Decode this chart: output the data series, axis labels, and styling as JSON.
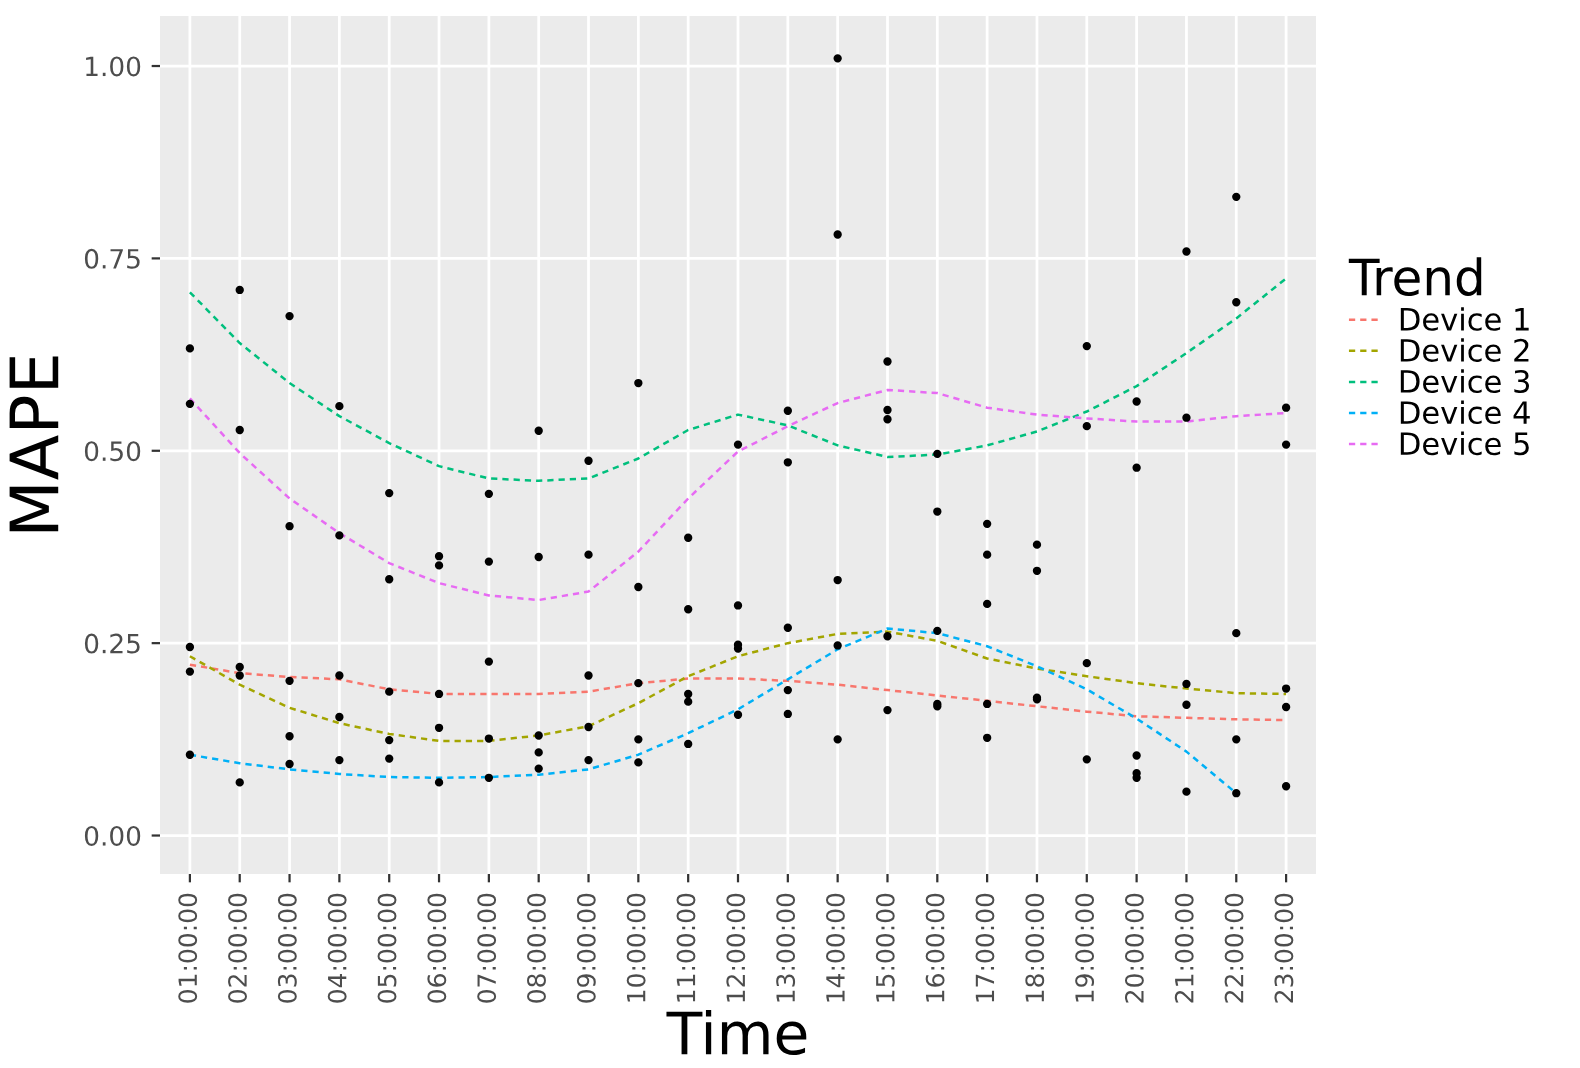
{
  "chart_data": {
    "type": "line",
    "xlabel": "Time",
    "ylabel": "MAPE",
    "legend_title": "Trend",
    "legend": "right",
    "grid": true,
    "line_style": "dashed",
    "marker": "none",
    "categories": [
      "01:00:00",
      "02:00:00",
      "03:00:00",
      "04:00:00",
      "05:00:00",
      "06:00:00",
      "07:00:00",
      "08:00:00",
      "09:00:00",
      "10:00:00",
      "11:00:00",
      "12:00:00",
      "13:00:00",
      "14:00:00",
      "15:00:00",
      "16:00:00",
      "17:00:00",
      "18:00:00",
      "19:00:00",
      "20:00:00",
      "21:00:00",
      "22:00:00",
      "23:00:00"
    ],
    "ylim": [
      -0.05,
      1.065
    ],
    "yticks": [
      {
        "value": 0,
        "label": "0.00"
      },
      {
        "value": 0.25,
        "label": "0.25"
      },
      {
        "value": 0.5,
        "label": "0.50"
      },
      {
        "value": 0.75,
        "label": "0.75"
      },
      {
        "value": 1,
        "label": "1.00"
      }
    ],
    "series": [
      {
        "type": "scatter",
        "marker": "circle",
        "color": "#000000",
        "x": [
          "01:00:00",
          "01:00:00",
          "01:00:00",
          "01:00:00",
          "01:00:00",
          "02:00:00",
          "02:00:00",
          "02:00:00",
          "02:00:00",
          "02:00:00",
          "03:00:00",
          "03:00:00",
          "03:00:00",
          "03:00:00",
          "03:00:00",
          "04:00:00",
          "04:00:00",
          "04:00:00",
          "04:00:00",
          "04:00:00",
          "05:00:00",
          "05:00:00",
          "05:00:00",
          "05:00:00",
          "05:00:00",
          "06:00:00",
          "06:00:00",
          "06:00:00",
          "06:00:00",
          "06:00:00",
          "07:00:00",
          "07:00:00",
          "07:00:00",
          "07:00:00",
          "07:00:00",
          "08:00:00",
          "08:00:00",
          "08:00:00",
          "08:00:00",
          "08:00:00",
          "09:00:00",
          "09:00:00",
          "09:00:00",
          "09:00:00",
          "09:00:00",
          "10:00:00",
          "10:00:00",
          "10:00:00",
          "10:00:00",
          "10:00:00",
          "11:00:00",
          "11:00:00",
          "11:00:00",
          "11:00:00",
          "11:00:00",
          "12:00:00",
          "12:00:00",
          "12:00:00",
          "12:00:00",
          "12:00:00",
          "13:00:00",
          "13:00:00",
          "13:00:00",
          "13:00:00",
          "13:00:00",
          "14:00:00",
          "14:00:00",
          "14:00:00",
          "14:00:00",
          "14:00:00",
          "15:00:00",
          "15:00:00",
          "15:00:00",
          "15:00:00",
          "15:00:00",
          "16:00:00",
          "16:00:00",
          "16:00:00",
          "16:00:00",
          "16:00:00",
          "17:00:00",
          "17:00:00",
          "17:00:00",
          "17:00:00",
          "17:00:00",
          "18:00:00",
          "18:00:00",
          "18:00:00",
          "18:00:00",
          "19:00:00",
          "19:00:00",
          "19:00:00",
          "19:00:00",
          "20:00:00",
          "20:00:00",
          "20:00:00",
          "20:00:00",
          "20:00:00",
          "21:00:00",
          "21:00:00",
          "21:00:00",
          "21:00:00",
          "21:00:00",
          "22:00:00",
          "22:00:00",
          "22:00:00",
          "22:00:00",
          "22:00:00",
          "23:00:00",
          "23:00:00",
          "23:00:00",
          "23:00:00",
          "23:00:00"
        ],
        "values": [
          0.633,
          0.561,
          0.245,
          0.213,
          0.105,
          0.709,
          0.527,
          0.219,
          0.208,
          0.069,
          0.675,
          0.402,
          0.201,
          0.129,
          0.093,
          0.558,
          0.39,
          0.208,
          0.154,
          0.098,
          0.445,
          0.333,
          0.187,
          0.124,
          0.1,
          0.363,
          0.351,
          0.184,
          0.14,
          0.069,
          0.444,
          0.356,
          0.226,
          0.126,
          0.075,
          0.526,
          0.362,
          0.13,
          0.108,
          0.087,
          0.487,
          0.365,
          0.208,
          0.141,
          0.098,
          0.588,
          0.323,
          0.198,
          0.125,
          0.095,
          0.387,
          0.294,
          0.184,
          0.174,
          0.119,
          0.508,
          0.299,
          0.248,
          0.243,
          0.157,
          0.552,
          0.485,
          0.27,
          0.189,
          0.158,
          1.01,
          0.781,
          0.332,
          0.247,
          0.125,
          0.616,
          0.553,
          0.541,
          0.259,
          0.163,
          0.496,
          0.421,
          0.266,
          0.171,
          0.168,
          0.405,
          0.365,
          0.301,
          0.171,
          0.127,
          0.378,
          0.344,
          0.179,
          0.177,
          0.636,
          0.532,
          0.224,
          0.099,
          0.564,
          0.478,
          0.104,
          0.081,
          0.075,
          0.759,
          0.543,
          0.197,
          0.17,
          0.057,
          0.83,
          0.693,
          0.263,
          0.125,
          0.055,
          0.556,
          0.508,
          0.191,
          0.167,
          0.064
        ]
      },
      {
        "name": "Device 1",
        "color": "#F8766D",
        "values": [
          0.222,
          0.211,
          0.206,
          0.203,
          0.19,
          0.184,
          0.184,
          0.184,
          0.187,
          0.198,
          0.204,
          0.204,
          0.201,
          0.196,
          0.189,
          0.182,
          0.175,
          0.168,
          0.161,
          0.155,
          0.153,
          0.151,
          0.15
        ]
      },
      {
        "name": "Device 2",
        "color": "#A3A500",
        "values": [
          0.233,
          0.196,
          0.166,
          0.146,
          0.132,
          0.123,
          0.123,
          0.13,
          0.142,
          0.172,
          0.207,
          0.233,
          0.25,
          0.262,
          0.265,
          0.253,
          0.23,
          0.217,
          0.207,
          0.198,
          0.191,
          0.185,
          0.184
        ]
      },
      {
        "name": "Device 3",
        "color": "#00BF7D",
        "values": [
          0.706,
          0.64,
          0.588,
          0.545,
          0.51,
          0.48,
          0.464,
          0.461,
          0.464,
          0.49,
          0.527,
          0.547,
          0.533,
          0.507,
          0.492,
          0.495,
          0.507,
          0.525,
          0.551,
          0.584,
          0.627,
          0.672,
          0.724
        ]
      },
      {
        "name": "Device 4",
        "color": "#00B0F6",
        "values": [
          0.105,
          0.094,
          0.086,
          0.08,
          0.076,
          0.075,
          0.076,
          0.079,
          0.086,
          0.105,
          0.133,
          0.164,
          0.203,
          0.242,
          0.269,
          0.263,
          0.246,
          0.22,
          0.19,
          0.152,
          0.109,
          0.055,
          null
        ]
      },
      {
        "name": "Device 5",
        "color": "#E76BF3",
        "values": [
          0.568,
          0.497,
          0.438,
          0.393,
          0.354,
          0.328,
          0.312,
          0.306,
          0.317,
          0.369,
          0.438,
          0.499,
          0.532,
          0.562,
          0.579,
          0.575,
          0.556,
          0.547,
          0.542,
          0.538,
          0.538,
          0.545,
          0.549
        ]
      }
    ]
  }
}
